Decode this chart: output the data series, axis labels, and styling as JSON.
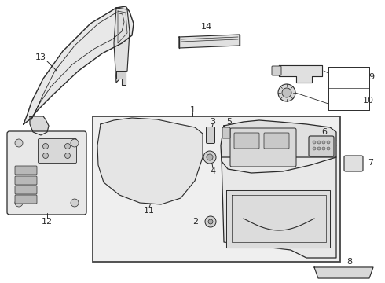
{
  "bg_color": "#ffffff",
  "line_color": "#2a2a2a",
  "fill_light": "#f0f0f0",
  "fill_mid": "#e0e0e0",
  "fill_dark": "#c8c8c8",
  "panel_bg": "#ebebeb"
}
